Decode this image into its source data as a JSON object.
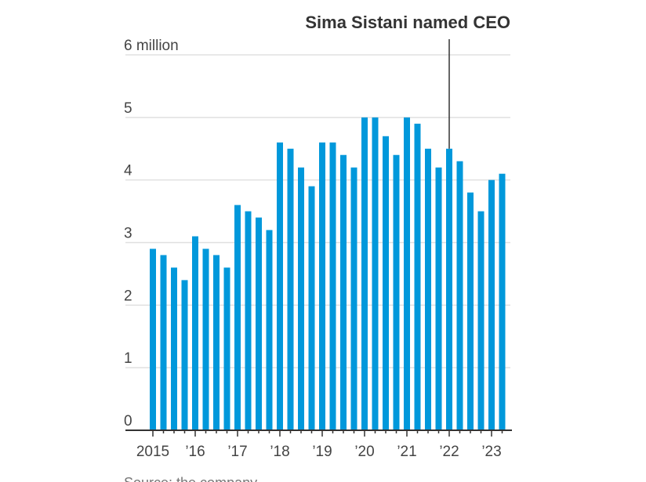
{
  "chart_data": {
    "type": "bar",
    "title": "",
    "annotation": {
      "label": "Sima Sistani named CEO",
      "category_index": 28
    },
    "xlabel": "",
    "ylabel": "",
    "ylim": [
      0,
      6
    ],
    "y_ticks": [
      {
        "value": 0,
        "label": "0"
      },
      {
        "value": 1,
        "label": "1"
      },
      {
        "value": 2,
        "label": "2"
      },
      {
        "value": 3,
        "label": "3"
      },
      {
        "value": 4,
        "label": "4"
      },
      {
        "value": 5,
        "label": "5"
      },
      {
        "value": 6,
        "label": "6 million"
      }
    ],
    "x_ticks": [
      {
        "index": 0,
        "label": "2015"
      },
      {
        "index": 4,
        "label": "’16"
      },
      {
        "index": 8,
        "label": "’17"
      },
      {
        "index": 12,
        "label": "’18"
      },
      {
        "index": 16,
        "label": "’19"
      },
      {
        "index": 20,
        "label": "’20"
      },
      {
        "index": 24,
        "label": "’21"
      },
      {
        "index": 28,
        "label": "’22"
      },
      {
        "index": 32,
        "label": "’23"
      }
    ],
    "categories": [
      "2015 Q1",
      "2015 Q2",
      "2015 Q3",
      "2015 Q4",
      "2016 Q1",
      "2016 Q2",
      "2016 Q3",
      "2016 Q4",
      "2017 Q1",
      "2017 Q2",
      "2017 Q3",
      "2017 Q4",
      "2018 Q1",
      "2018 Q2",
      "2018 Q3",
      "2018 Q4",
      "2019 Q1",
      "2019 Q2",
      "2019 Q3",
      "2019 Q4",
      "2020 Q1",
      "2020 Q2",
      "2020 Q3",
      "2020 Q4",
      "2021 Q1",
      "2021 Q2",
      "2021 Q3",
      "2021 Q4",
      "2022 Q1",
      "2022 Q2",
      "2022 Q3",
      "2022 Q4",
      "2023 Q1",
      "2023 Q2"
    ],
    "values": [
      2.9,
      2.8,
      2.6,
      2.4,
      3.1,
      2.9,
      2.8,
      2.6,
      3.6,
      3.5,
      3.4,
      3.2,
      4.6,
      4.5,
      4.2,
      3.9,
      4.6,
      4.6,
      4.4,
      4.2,
      5.0,
      5.0,
      4.7,
      4.4,
      5.0,
      4.9,
      4.5,
      4.2,
      4.5,
      4.3,
      3.8,
      3.5,
      4.0,
      4.1
    ],
    "grid": true,
    "bar_color": "#0098db",
    "source": "Source: the company"
  }
}
